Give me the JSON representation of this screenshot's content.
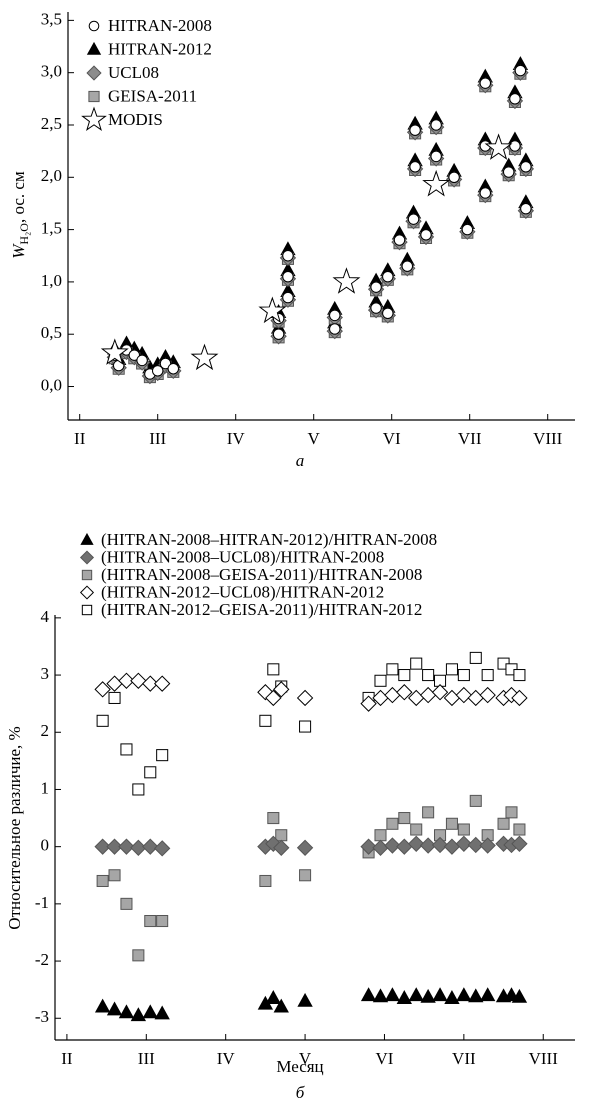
{
  "chart_data": [
    {
      "type": "scatter",
      "caption": "а",
      "y_label": {
        "symbol": "W",
        "subscript": "H₂O",
        "unit": ", ос. см"
      },
      "xlim": [
        1.85,
        8.35
      ],
      "ylim": [
        -0.32,
        3.58
      ],
      "xticks": [
        {
          "value": 2,
          "label": "II"
        },
        {
          "value": 3,
          "label": "III"
        },
        {
          "value": 4,
          "label": "IV"
        },
        {
          "value": 5,
          "label": "V"
        },
        {
          "value": 6,
          "label": "VI"
        },
        {
          "value": 7,
          "label": "VII"
        },
        {
          "value": 8,
          "label": "VIII"
        }
      ],
      "yticks": [
        {
          "value": 0,
          "label": "0,0"
        },
        {
          "value": 0.5,
          "label": "0,5"
        },
        {
          "value": 1,
          "label": "1,0"
        },
        {
          "value": 1.5,
          "label": "1,5"
        },
        {
          "value": 2,
          "label": "2,0"
        },
        {
          "value": 2.5,
          "label": "2,5"
        },
        {
          "value": 3,
          "label": "3,0"
        },
        {
          "value": 3.5,
          "label": "3,5"
        }
      ],
      "legend": "upper left",
      "series": [
        {
          "name": "HITRAN-2008",
          "marker": "circle",
          "color": "#ffffff",
          "x": [
            2.45,
            2.5,
            2.6,
            2.7,
            2.8,
            2.9,
            3.0,
            3.1,
            3.2,
            4.55,
            4.55,
            4.67,
            4.67,
            4.67,
            5.27,
            5.27,
            5.8,
            5.8,
            5.95,
            5.95,
            6.1,
            6.2,
            6.28,
            6.3,
            6.3,
            6.44,
            6.57,
            6.57,
            6.8,
            6.97,
            7.2,
            7.2,
            7.2,
            7.5,
            7.58,
            7.58,
            7.65,
            7.72,
            7.72
          ],
          "values": [
            0.3,
            0.2,
            0.35,
            0.3,
            0.25,
            0.12,
            0.15,
            0.22,
            0.17,
            0.5,
            0.65,
            0.85,
            1.05,
            1.25,
            0.55,
            0.68,
            0.75,
            0.95,
            0.7,
            1.05,
            1.4,
            1.15,
            1.6,
            2.1,
            2.45,
            1.45,
            2.2,
            2.5,
            2.0,
            1.5,
            1.85,
            2.3,
            2.9,
            2.05,
            2.3,
            2.75,
            3.02,
            1.7,
            2.1
          ]
        },
        {
          "name": "HITRAN-2012",
          "marker": "triangle",
          "color": "#000000",
          "x": [
            2.45,
            2.5,
            2.6,
            2.7,
            2.8,
            2.9,
            3.0,
            3.1,
            3.2,
            4.55,
            4.55,
            4.67,
            4.67,
            4.67,
            5.27,
            5.27,
            5.8,
            5.8,
            5.95,
            5.95,
            6.1,
            6.2,
            6.28,
            6.3,
            6.3,
            6.44,
            6.57,
            6.57,
            6.8,
            6.97,
            7.2,
            7.2,
            7.2,
            7.5,
            7.58,
            7.58,
            7.65,
            7.72,
            7.72
          ],
          "values": [
            0.36,
            0.26,
            0.41,
            0.36,
            0.31,
            0.18,
            0.21,
            0.28,
            0.23,
            0.56,
            0.71,
            0.91,
            1.11,
            1.31,
            0.61,
            0.74,
            0.81,
            1.01,
            0.76,
            1.11,
            1.46,
            1.21,
            1.66,
            2.16,
            2.51,
            1.51,
            2.26,
            2.56,
            2.06,
            1.56,
            1.91,
            2.36,
            2.96,
            2.11,
            2.36,
            2.81,
            3.08,
            1.76,
            2.16
          ]
        },
        {
          "name": "UCL08",
          "marker": "diamond",
          "color": "#8c8c8c",
          "x": [
            2.45,
            2.5,
            2.6,
            2.7,
            2.8,
            2.9,
            3.0,
            3.1,
            3.2,
            4.55,
            4.55,
            4.67,
            4.67,
            4.67,
            5.27,
            5.27,
            5.8,
            5.8,
            5.95,
            5.95,
            6.1,
            6.2,
            6.28,
            6.3,
            6.3,
            6.44,
            6.57,
            6.57,
            6.8,
            6.97,
            7.2,
            7.2,
            7.2,
            7.5,
            7.58,
            7.58,
            7.65,
            7.72,
            7.72
          ],
          "values": [
            0.28,
            0.18,
            0.33,
            0.28,
            0.23,
            0.1,
            0.13,
            0.2,
            0.15,
            0.48,
            0.63,
            0.83,
            1.03,
            1.23,
            0.53,
            0.66,
            0.73,
            0.93,
            0.68,
            1.03,
            1.38,
            1.13,
            1.58,
            2.08,
            2.43,
            1.43,
            2.18,
            2.48,
            1.98,
            1.48,
            1.83,
            2.28,
            2.88,
            2.03,
            2.28,
            2.73,
            3.0,
            1.68,
            2.08
          ]
        },
        {
          "name": "GEISA-2011",
          "marker": "square",
          "color": "#a6a6a6",
          "x": [
            2.45,
            2.5,
            2.6,
            2.7,
            2.8,
            2.9,
            3.0,
            3.1,
            3.2,
            4.55,
            4.55,
            4.67,
            4.67,
            4.67,
            5.27,
            5.27,
            5.8,
            5.8,
            5.95,
            5.95,
            6.1,
            6.2,
            6.28,
            6.3,
            6.3,
            6.44,
            6.57,
            6.57,
            6.8,
            6.97,
            7.2,
            7.2,
            7.2,
            7.5,
            7.58,
            7.58,
            7.65,
            7.72,
            7.72
          ],
          "values": [
            0.27,
            0.17,
            0.32,
            0.27,
            0.22,
            0.09,
            0.12,
            0.19,
            0.14,
            0.47,
            0.62,
            0.82,
            1.02,
            1.22,
            0.52,
            0.65,
            0.72,
            0.92,
            0.67,
            1.02,
            1.37,
            1.12,
            1.57,
            2.07,
            2.42,
            1.42,
            2.17,
            2.47,
            1.97,
            1.47,
            1.82,
            2.27,
            2.87,
            2.02,
            2.27,
            2.72,
            2.99,
            1.67,
            2.07
          ]
        },
        {
          "name": "MODIS",
          "marker": "star",
          "color": "#ffffff",
          "x": [
            2.45,
            3.6,
            4.47,
            5.42,
            6.57,
            7.37
          ],
          "values": [
            0.32,
            0.27,
            0.72,
            1.0,
            1.93,
            2.28
          ]
        }
      ]
    },
    {
      "type": "scatter",
      "caption": "б",
      "x_label": "Месяц",
      "y_label": "Относительное различие, %",
      "xlim": [
        1.85,
        8.4
      ],
      "ylim": [
        -3.38,
        4.05
      ],
      "xticks": [
        {
          "value": 2,
          "label": "II"
        },
        {
          "value": 3,
          "label": "III"
        },
        {
          "value": 4,
          "label": "IV"
        },
        {
          "value": 5,
          "label": "V"
        },
        {
          "value": 6,
          "label": "VI"
        },
        {
          "value": 7,
          "label": "VII"
        },
        {
          "value": 8,
          "label": "VIII"
        }
      ],
      "yticks": [
        -3,
        -2,
        -1,
        0,
        1,
        2,
        3,
        4
      ],
      "legend": "above",
      "series": [
        {
          "name": "(HITRAN-2008–HITRAN-2012)/HITRAN-2008",
          "marker": "triangle",
          "color": "#000000",
          "x": [
            2.45,
            2.6,
            2.75,
            2.9,
            3.05,
            3.2,
            4.5,
            4.6,
            4.7,
            5.0,
            5.8,
            5.95,
            6.1,
            6.25,
            6.4,
            6.55,
            6.7,
            6.85,
            7.0,
            7.15,
            7.3,
            7.5,
            7.6,
            7.7
          ],
          "values": [
            -2.8,
            -2.85,
            -2.9,
            -2.95,
            -2.9,
            -2.92,
            -2.75,
            -2.65,
            -2.8,
            -2.7,
            -2.6,
            -2.62,
            -2.6,
            -2.65,
            -2.6,
            -2.63,
            -2.6,
            -2.65,
            -2.6,
            -2.62,
            -2.6,
            -2.62,
            -2.6,
            -2.63
          ]
        },
        {
          "name": "(HITRAN-2008–UCL08)/HITRAN-2008",
          "marker": "diamond",
          "color": "#707070",
          "x": [
            2.45,
            2.6,
            2.75,
            2.9,
            3.05,
            3.2,
            4.5,
            4.6,
            4.7,
            5.0,
            5.8,
            5.95,
            6.1,
            6.25,
            6.4,
            6.55,
            6.7,
            6.85,
            7.0,
            7.15,
            7.3,
            7.5,
            7.6,
            7.7
          ],
          "values": [
            0,
            0,
            0,
            -0.02,
            0,
            -0.03,
            0,
            0.05,
            -0.02,
            -0.02,
            0,
            -0.02,
            0.02,
            0,
            0.05,
            0.02,
            0.03,
            0,
            0.05,
            0.03,
            0.02,
            0.05,
            0.03,
            0.05
          ]
        },
        {
          "name": "(HITRAN-2008–GEISA-2011)/HITRAN-2008",
          "marker": "square",
          "color": "#a6a6a6",
          "x": [
            2.45,
            2.6,
            2.75,
            2.9,
            3.05,
            3.2,
            4.5,
            4.6,
            4.7,
            5.0,
            5.8,
            5.95,
            6.1,
            6.25,
            6.4,
            6.55,
            6.7,
            6.85,
            7.0,
            7.15,
            7.3,
            7.5,
            7.6,
            7.7
          ],
          "values": [
            -0.6,
            -0.5,
            -1.0,
            -1.9,
            -1.3,
            -1.3,
            -0.6,
            0.5,
            0.2,
            -0.5,
            -0.1,
            0.2,
            0.4,
            0.5,
            0.3,
            0.6,
            0.2,
            0.4,
            0.3,
            0.8,
            0.2,
            0.4,
            0.6,
            0.3
          ]
        },
        {
          "name": "(HITRAN-2012–UCL08)/HITRAN-2012",
          "marker": "diamond",
          "color": "#ffffff",
          "x": [
            2.45,
            2.6,
            2.75,
            2.9,
            3.05,
            3.2,
            4.5,
            4.6,
            4.7,
            5.0,
            5.8,
            5.95,
            6.1,
            6.25,
            6.4,
            6.55,
            6.7,
            6.85,
            7.0,
            7.15,
            7.3,
            7.5,
            7.6,
            7.7
          ],
          "values": [
            2.75,
            2.85,
            2.9,
            2.9,
            2.85,
            2.85,
            2.7,
            2.6,
            2.75,
            2.6,
            2.5,
            2.6,
            2.65,
            2.7,
            2.6,
            2.65,
            2.7,
            2.6,
            2.65,
            2.6,
            2.65,
            2.6,
            2.65,
            2.6
          ]
        },
        {
          "name": "(HITRAN-2012–GEISA-2011)/HITRAN-2012",
          "marker": "square",
          "color": "#ffffff",
          "x": [
            2.45,
            2.6,
            2.75,
            2.9,
            3.05,
            3.2,
            4.5,
            4.6,
            4.7,
            5.0,
            5.8,
            5.95,
            6.1,
            6.25,
            6.4,
            6.55,
            6.7,
            6.85,
            7.0,
            7.15,
            7.3,
            7.5,
            7.6,
            7.7
          ],
          "values": [
            2.2,
            2.6,
            1.7,
            1.0,
            1.3,
            1.6,
            2.2,
            3.1,
            2.8,
            2.1,
            2.6,
            2.9,
            3.1,
            3.0,
            3.2,
            3.0,
            2.9,
            3.1,
            3.0,
            3.3,
            3.0,
            3.2,
            3.1,
            3.0
          ]
        }
      ]
    }
  ]
}
